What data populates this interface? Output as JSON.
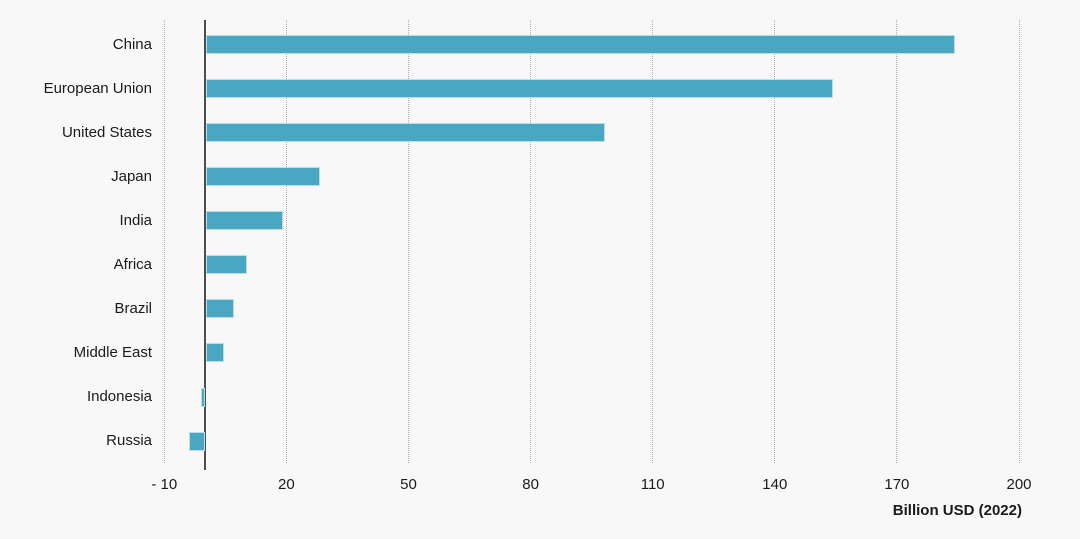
{
  "chart_data": {
    "type": "bar",
    "orientation": "horizontal",
    "categories": [
      "China",
      "European Union",
      "United States",
      "Japan",
      "India",
      "Africa",
      "Brazil",
      "Middle East",
      "Indonesia",
      "Russia"
    ],
    "values": [
      184,
      154,
      98,
      28,
      19,
      10,
      7,
      4.5,
      -1,
      -4
    ],
    "xlabel": "Billion USD (2022)",
    "ylabel": "",
    "x_ticks": [
      -10,
      20,
      50,
      80,
      110,
      140,
      170,
      200
    ],
    "x_tick_labels": [
      "- 10",
      "20",
      "50",
      "80",
      "110",
      "140",
      "170",
      "200"
    ],
    "xlim": [
      -13,
      212
    ],
    "legend": "none",
    "grid": "vertical-dotted",
    "colors": {
      "bar_fill": "#4AA7C1",
      "bar_edge": "#BCDCE8",
      "axis_line": "#4D4D4D",
      "gridline": "#B0B0B0",
      "text": "#1A1A1A",
      "background": "#F8F8F8"
    }
  }
}
